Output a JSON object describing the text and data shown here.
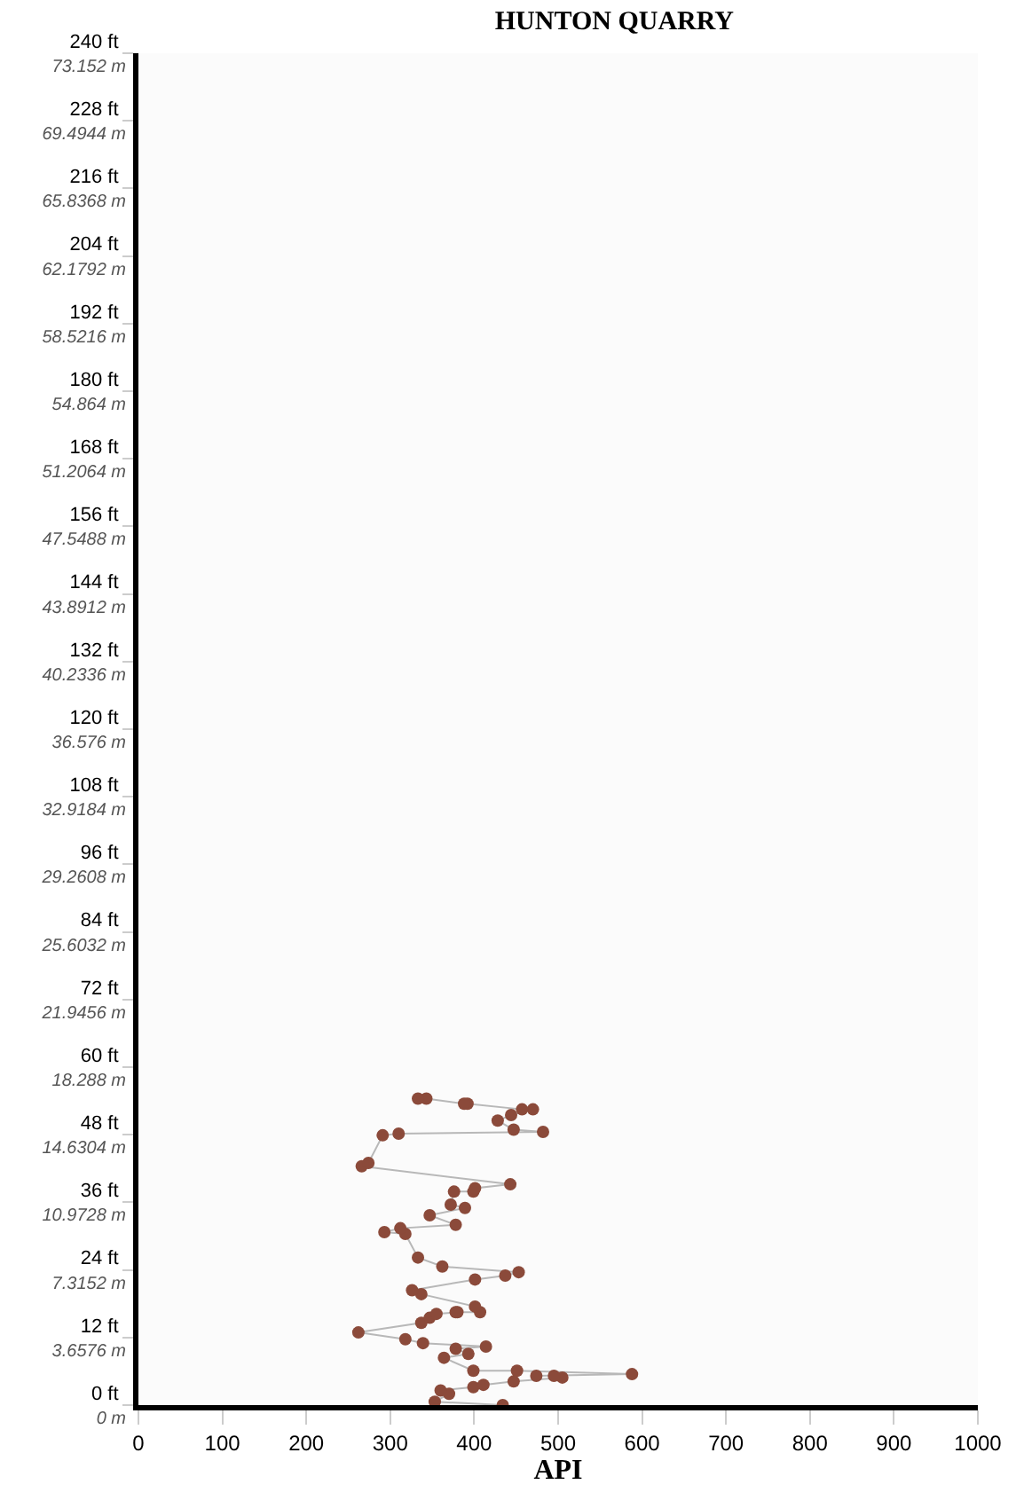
{
  "chart_data": {
    "type": "line",
    "title": "HUNTON QUARRY",
    "xlabel": "API",
    "xlim": [
      0,
      1000
    ],
    "xticks": [
      0,
      100,
      200,
      300,
      400,
      500,
      600,
      700,
      800,
      900,
      1000
    ],
    "ylim": [
      0,
      240
    ],
    "yticks": [
      {
        "value": 0,
        "label": "0 ft"
      },
      {
        "value": 12,
        "label": "12 ft"
      },
      {
        "value": 24,
        "label": "24 ft"
      },
      {
        "value": 36,
        "label": "36 ft"
      },
      {
        "value": 48,
        "label": "48 ft"
      },
      {
        "value": 60,
        "label": "60 ft"
      },
      {
        "value": 72,
        "label": "72 ft"
      },
      {
        "value": 84,
        "label": "84 ft"
      },
      {
        "value": 96,
        "label": "96 ft"
      },
      {
        "value": 108,
        "label": "108 ft"
      },
      {
        "value": 120,
        "label": "120 ft"
      },
      {
        "value": 132,
        "label": "132 ft"
      },
      {
        "value": 144,
        "label": "144 ft"
      },
      {
        "value": 156,
        "label": "156 ft"
      },
      {
        "value": 168,
        "label": "168 ft"
      },
      {
        "value": 180,
        "label": "180 ft"
      },
      {
        "value": 192,
        "label": "192 ft"
      },
      {
        "value": 204,
        "label": "204 ft"
      },
      {
        "value": 216,
        "label": "216 ft"
      },
      {
        "value": 228,
        "label": "228 ft"
      },
      {
        "value": 240,
        "label": "240 ft"
      }
    ],
    "y2lim": [
      0,
      73.152
    ],
    "y2ticks": [
      {
        "value": 0,
        "label": "0 m"
      },
      {
        "value": 3.6576,
        "label": "3.6576 m"
      },
      {
        "value": 7.3152,
        "label": "7.3152 m"
      },
      {
        "value": 10.9728,
        "label": "10.9728 m"
      },
      {
        "value": 14.6304,
        "label": "14.6304 m"
      },
      {
        "value": 18.288,
        "label": "18.288 m"
      },
      {
        "value": 21.9456,
        "label": "21.9456 m"
      },
      {
        "value": 25.6032,
        "label": "25.6032 m"
      },
      {
        "value": 29.2608,
        "label": "29.2608 m"
      },
      {
        "value": 32.9184,
        "label": "32.9184 m"
      },
      {
        "value": 36.576,
        "label": "36.576 m"
      },
      {
        "value": 40.2336,
        "label": "40.2336 m"
      },
      {
        "value": 43.8912,
        "label": "43.8912 m"
      },
      {
        "value": 47.5488,
        "label": "47.5488 m"
      },
      {
        "value": 51.2064,
        "label": "51.2064 m"
      },
      {
        "value": 54.864,
        "label": "54.864 m"
      },
      {
        "value": 58.5216,
        "label": "58.5216 m"
      },
      {
        "value": 62.1792,
        "label": "62.1792 m"
      },
      {
        "value": 65.8368,
        "label": "65.8368 m"
      },
      {
        "value": 69.4944,
        "label": "69.4944 m"
      },
      {
        "value": 73.152,
        "label": "73.152 m"
      }
    ],
    "marker": "circle",
    "line_style": "solid",
    "series": [
      {
        "color": "#8b4a3a",
        "x": [
          434,
          353,
          370,
          360,
          399,
          411,
          447,
          505,
          495,
          474,
          588,
          451,
          399,
          364,
          393,
          378,
          414,
          339,
          318,
          262,
          337,
          347,
          355,
          380,
          378,
          407,
          401,
          337,
          326,
          401,
          437,
          453,
          362,
          333,
          318,
          293,
          312,
          378,
          347,
          389,
          372,
          376,
          399,
          401,
          443,
          266,
          274,
          291,
          310,
          482,
          447,
          428,
          444,
          470,
          457,
          392,
          388,
          343,
          333
        ],
        "values": [
          0,
          0.6,
          2,
          2.6,
          3.2,
          3.6,
          4.2,
          4.9,
          5.2,
          5.2,
          5.5,
          6.1,
          6.1,
          8.4,
          9.1,
          10,
          10.4,
          11,
          11.7,
          12.9,
          14.6,
          15.5,
          16.2,
          16.5,
          16.5,
          16.5,
          17.5,
          19.7,
          20.4,
          22.3,
          23,
          23.6,
          24.6,
          26.2,
          30.4,
          30.7,
          31.4,
          32,
          33.7,
          35,
          35.6,
          37.9,
          37.9,
          38.5,
          39.2,
          42.4,
          43,
          47.9,
          48.2,
          48.5,
          48.9,
          50.5,
          51.5,
          52.5,
          52.5,
          53.5,
          53.5,
          54.4,
          54.4
        ]
      }
    ]
  }
}
